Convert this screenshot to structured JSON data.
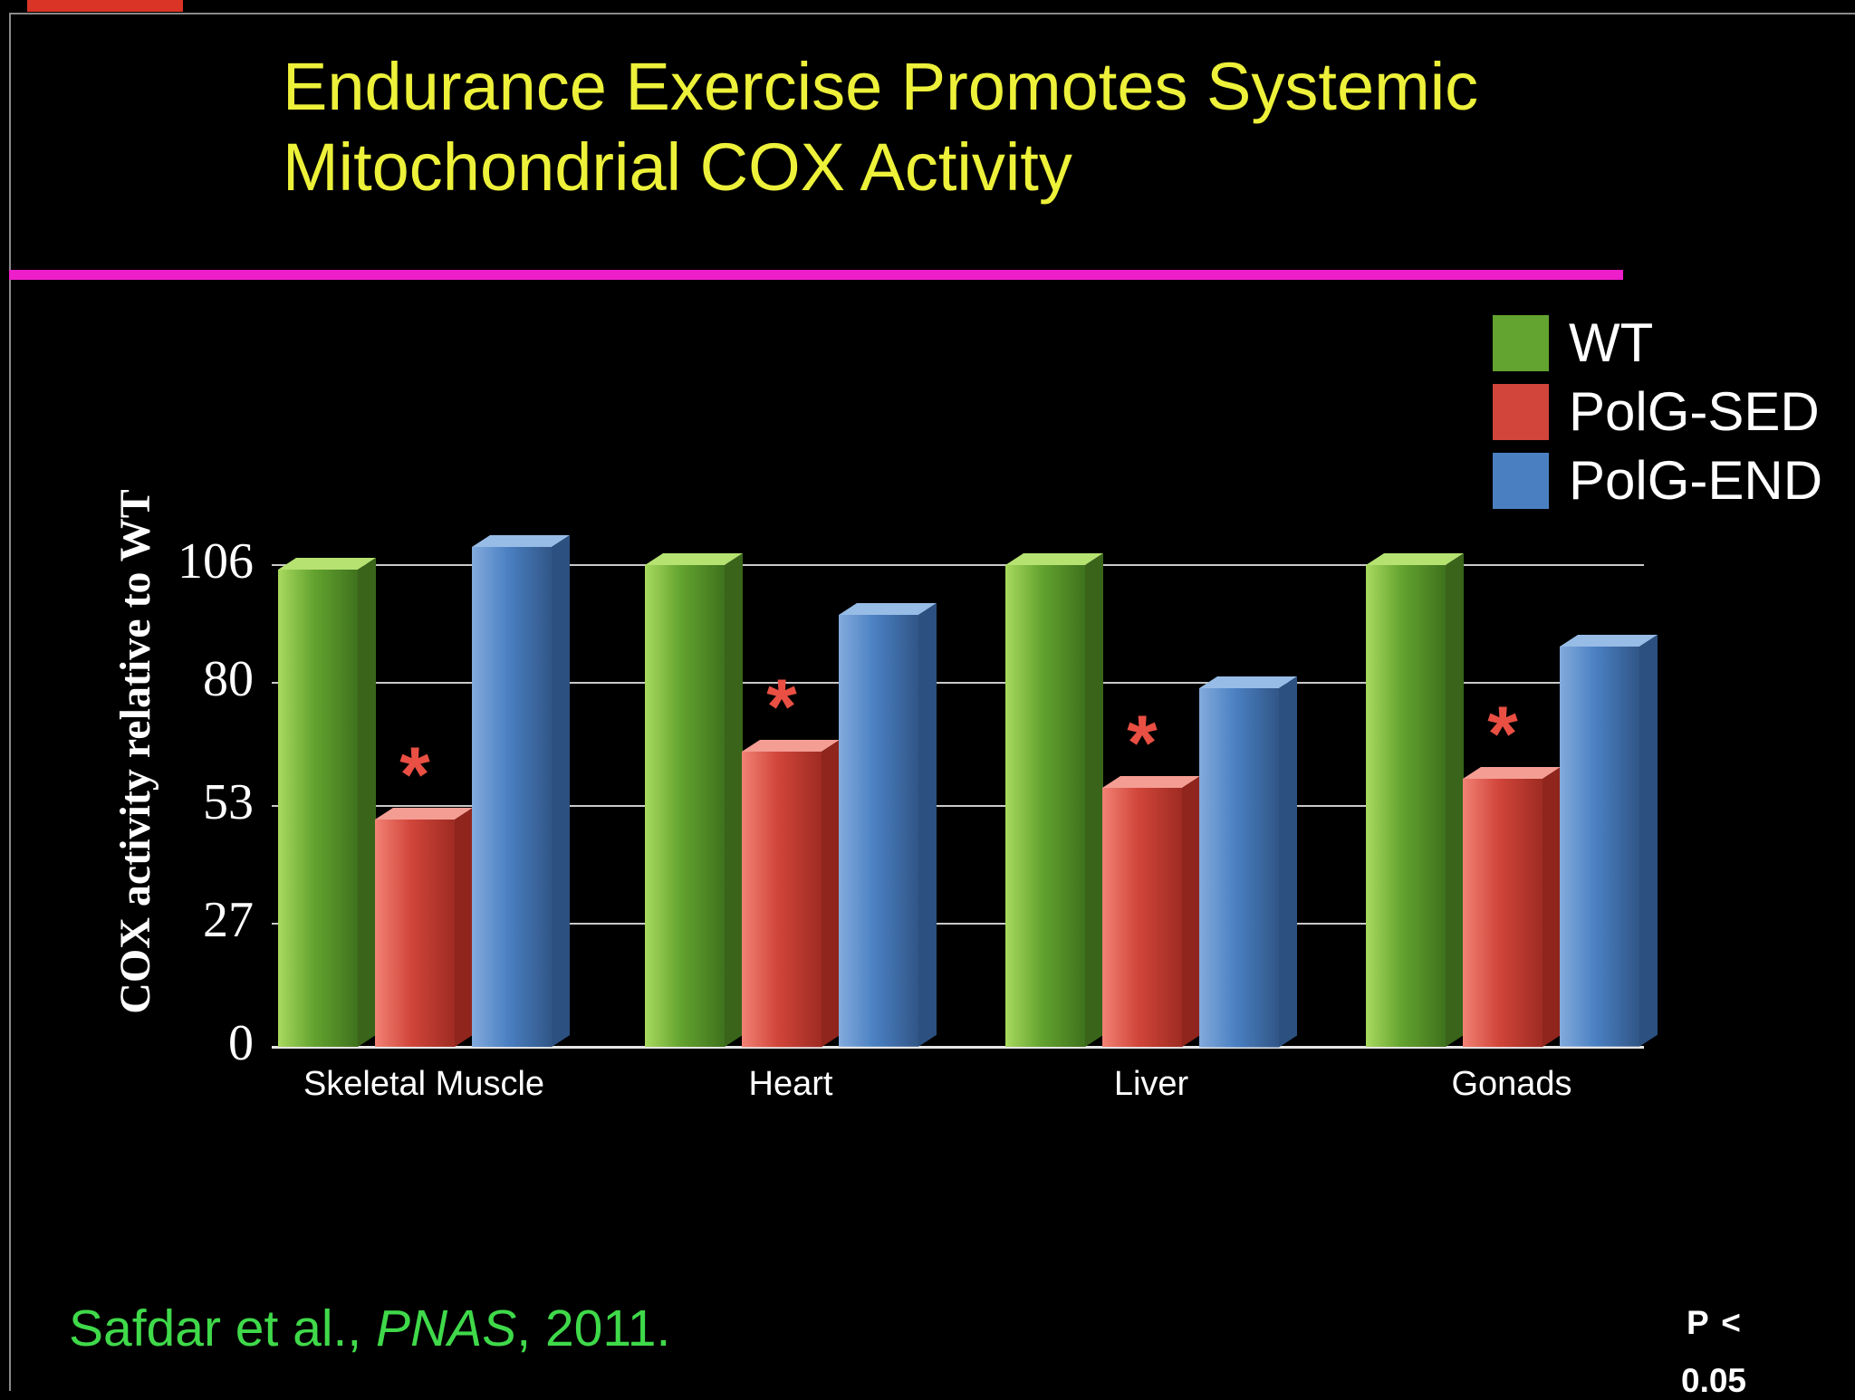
{
  "slide": {
    "title_line1": "Endurance Exercise Promotes Systemic",
    "title_line2": "Mitochondrial COX Activity",
    "citation": {
      "prefix": "Safdar et al., ",
      "journal_italic": "PNAS",
      "suffix": ", 2011."
    },
    "p_value_note": {
      "line1": "P <",
      "line2": "0.05"
    },
    "colors": {
      "background": "#000000",
      "title": "#edf139",
      "divider": "#ef1ecb",
      "citation": "#3fd94a",
      "significance_star": "#e94f43"
    }
  },
  "legend": [
    {
      "label": "WT",
      "color": "#63a32f"
    },
    {
      "label": "PolG-SED",
      "color": "#d1453a"
    },
    {
      "label": "PolG-END",
      "color": "#4a80c2"
    }
  ],
  "chart_data": {
    "type": "bar",
    "title": "Endurance Exercise Promotes Systemic Mitochondrial COX Activity",
    "categories": [
      "Skeletal Muscle",
      "Heart",
      "Liver",
      "Gonads"
    ],
    "series": [
      {
        "name": "WT",
        "color": "#63a32f",
        "values": [
          105,
          106,
          106,
          106
        ]
      },
      {
        "name": "PolG-SED",
        "color": "#d1453a",
        "values": [
          50,
          65,
          57,
          59
        ],
        "significant": [
          true,
          true,
          true,
          true
        ]
      },
      {
        "name": "PolG-END",
        "color": "#4a80c2",
        "values": [
          110,
          95,
          79,
          88
        ]
      }
    ],
    "ylabel": "COX activity relative to WT",
    "xlabel": "",
    "yticks": [
      0,
      27,
      53,
      80,
      106
    ],
    "ylim": [
      0,
      113
    ],
    "grid": true,
    "legend_position": "top-right",
    "annotations": "red asterisk above PolG-SED bars denotes P < 0.05"
  }
}
